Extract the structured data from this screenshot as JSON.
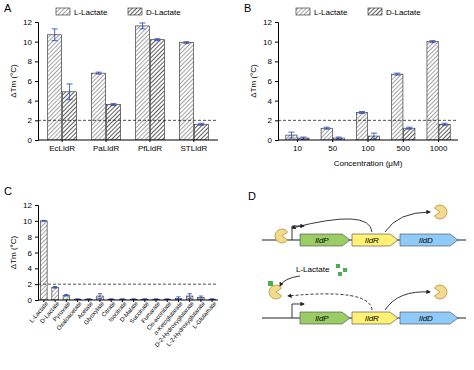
{
  "chart_data": [
    {
      "type": "bar",
      "title": "A",
      "y_label": "ΔTm (°C)",
      "categories": [
        "EcLldR",
        "PaLldR",
        "PfLldR",
        "STLldR"
      ],
      "series": [
        {
          "name": "L-Lactate",
          "color": "#8c8c8c",
          "values": [
            10.7,
            6.8,
            11.6,
            9.9
          ],
          "errors": [
            0.6,
            0.1,
            0.3,
            0.1
          ]
        },
        {
          "name": "D-Lactate",
          "color": "#333333",
          "values": [
            4.9,
            3.6,
            10.2,
            1.6
          ],
          "errors": [
            0.8,
            0.1,
            0.1,
            0.1
          ]
        }
      ],
      "ylim": [
        0,
        12
      ],
      "yticks": [
        0,
        2,
        4,
        6,
        8,
        10,
        12
      ],
      "reference_line": 2,
      "legend": "top"
    },
    {
      "type": "bar",
      "title": "B",
      "y_label": "ΔTm (°C)",
      "x_label": "Concentration (μM)",
      "categories": [
        "10",
        "50",
        "100",
        "500",
        "1000"
      ],
      "series": [
        {
          "name": "L-Lactate",
          "color": "#8c8c8c",
          "values": [
            0.5,
            1.2,
            2.8,
            6.7,
            10.0
          ],
          "errors": [
            0.3,
            0.1,
            0.1,
            0.1,
            0.1
          ]
        },
        {
          "name": "D-Lactate",
          "color": "#333333",
          "values": [
            0.2,
            0.2,
            0.4,
            1.2,
            1.6
          ],
          "errors": [
            0.1,
            0.1,
            0.3,
            0.1,
            0.1
          ]
        }
      ],
      "ylim": [
        0,
        12
      ],
      "yticks": [
        0,
        2,
        4,
        6,
        8,
        10,
        12
      ],
      "reference_line": 2,
      "legend": "top"
    },
    {
      "type": "bar",
      "title": "C",
      "y_label": "ΔTm (°C)",
      "categories": [
        "L-Lactate",
        "D-Lactate",
        "Pyruvate",
        "Oxaloacetate",
        "Acetate",
        "Glyoxylate",
        "Citrate",
        "Isocitrate",
        "D-Malate",
        "Succinate",
        "Fumarate",
        "Cis-aconitate",
        "α-Ketoglutarate",
        "D-2-Hydroxyglutarate",
        "L-2-Hydroxyglutarate",
        "L-Glutamate"
      ],
      "values": [
        10.0,
        1.6,
        0.6,
        0.1,
        0.1,
        0.5,
        0.1,
        0.1,
        0.1,
        0.1,
        0.1,
        0.1,
        0.2,
        0.5,
        0.3,
        0.1
      ],
      "errors": [
        0.05,
        0.1,
        0.1,
        0.05,
        0.05,
        0.3,
        0.05,
        0.05,
        0.05,
        0.05,
        0.05,
        0.05,
        0.2,
        0.3,
        0.2,
        0.05
      ],
      "color": "#8c8c8c",
      "ylim": [
        0,
        12
      ],
      "yticks": [
        0,
        2,
        4,
        6,
        8,
        10,
        12
      ],
      "reference_line": 2
    }
  ],
  "diagram": {
    "title": "D",
    "genes": [
      "lldP",
      "lldR",
      "lldD"
    ],
    "ligand": "L-Lactate"
  }
}
